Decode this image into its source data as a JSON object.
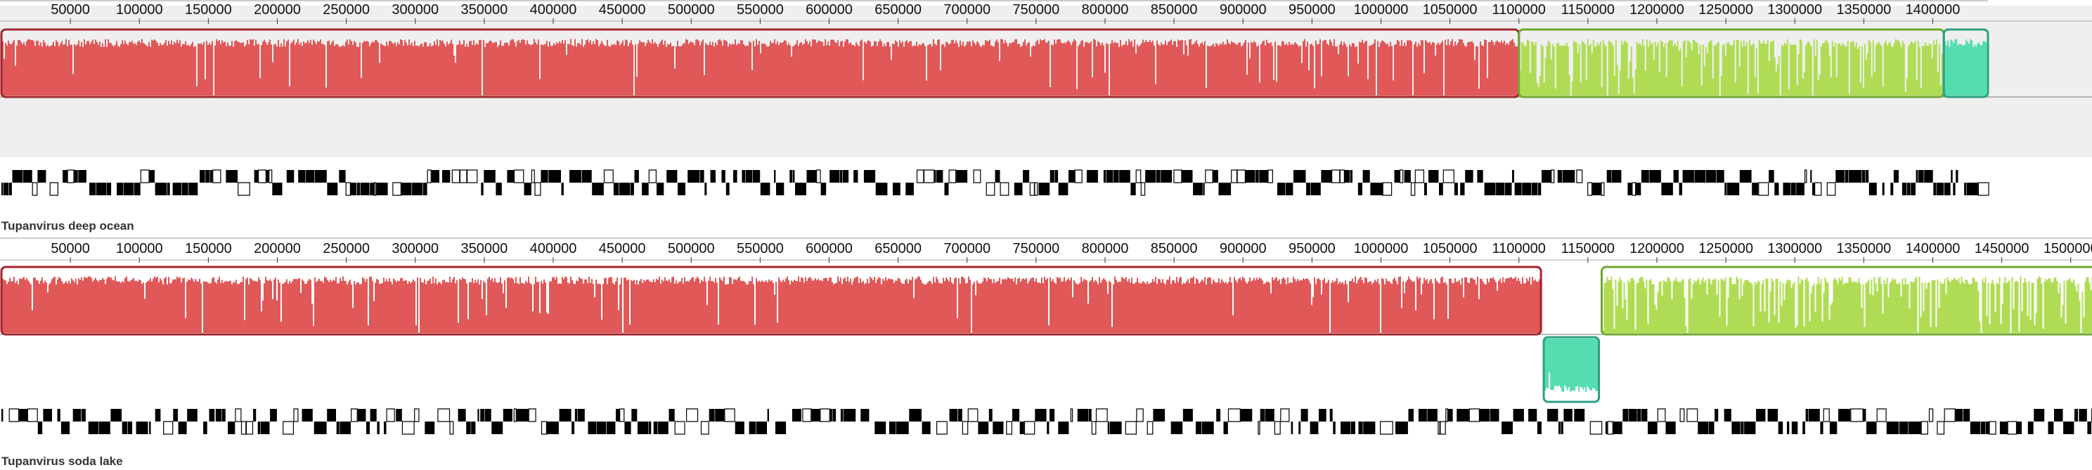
{
  "genomes": [
    {
      "name": "Tupanvirus deep ocean",
      "ruler": {
        "ticks": [
          "50000",
          "100000",
          "150000",
          "200000",
          "250000",
          "300000",
          "350000",
          "400000",
          "450000",
          "500000",
          "550000",
          "600000",
          "650000",
          "700000",
          "750000",
          "800000",
          "850000",
          "900000",
          "950000",
          "1000000",
          "1050000",
          "1100000",
          "1150000",
          "1200000",
          "1250000",
          "1300000",
          "1350000",
          "1400000"
        ],
        "start": 0,
        "end": 1440000
      },
      "blocks": [
        {
          "id": "lcb-red",
          "start": 0,
          "end": 1100000,
          "strand": "forward",
          "fill": "#e05858",
          "border": "#a0242c"
        },
        {
          "id": "lcb-green",
          "start": 1100000,
          "end": 1408000,
          "strand": "forward",
          "fill": "#b0dc55",
          "border": "#6fa72e"
        },
        {
          "id": "lcb-teal",
          "start": 1408000,
          "end": 1440000,
          "strand": "forward",
          "fill": "#55dcb0",
          "border": "#2aa082"
        }
      ],
      "panel_background": "#efefef"
    },
    {
      "name": "Tupanvirus soda lake",
      "ruler": {
        "ticks": [
          "50000",
          "100000",
          "150000",
          "200000",
          "250000",
          "300000",
          "350000",
          "400000",
          "450000",
          "500000",
          "550000",
          "600000",
          "650000",
          "700000",
          "750000",
          "800000",
          "850000",
          "900000",
          "950000",
          "1000000",
          "1050000",
          "1100000",
          "1150000",
          "1200000",
          "1250000",
          "1300000",
          "1350000",
          "1400000",
          "1450000",
          "1500000"
        ],
        "start": 0,
        "end": 1518000
      },
      "blocks": [
        {
          "id": "lcb-red",
          "start": 0,
          "end": 1116000,
          "strand": "forward",
          "fill": "#e05858",
          "border": "#a0242c"
        },
        {
          "id": "lcb-teal",
          "start": 1118000,
          "end": 1158000,
          "strand": "reverse",
          "fill": "#55dcb0",
          "border": "#2aa082"
        },
        {
          "id": "lcb-green",
          "start": 1160000,
          "end": 1518000,
          "strand": "forward",
          "fill": "#b0dc55",
          "border": "#6fa72e"
        }
      ],
      "panel_background": "#ffffff"
    }
  ]
}
